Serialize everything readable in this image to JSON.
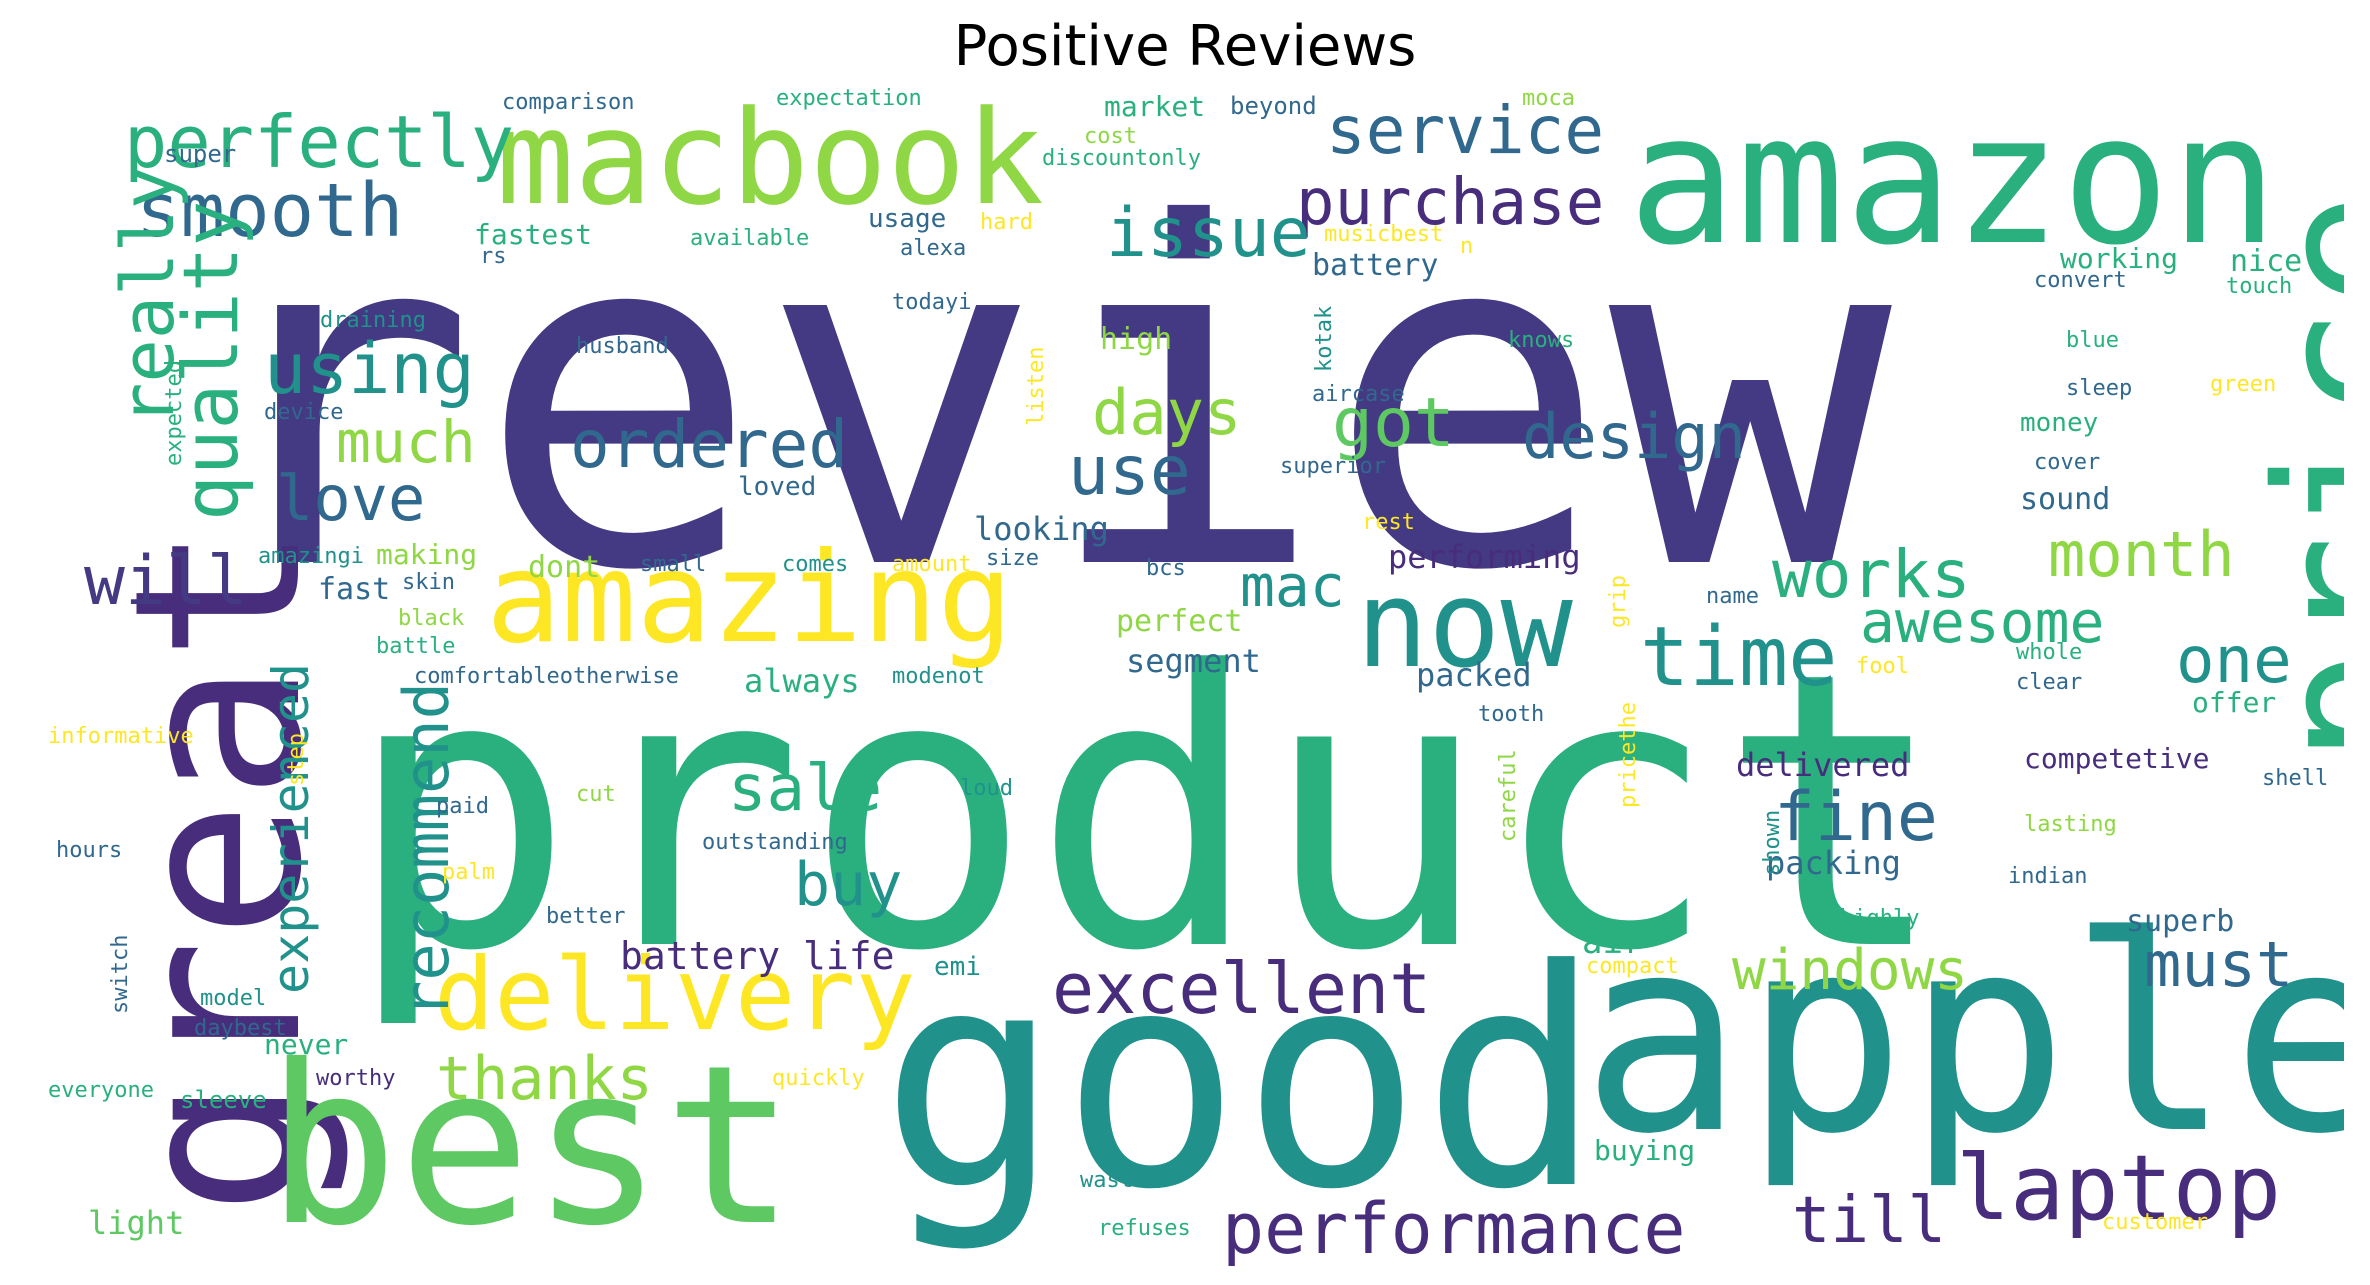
{
  "title": "Positive Reviews",
  "colors": {
    "navy": "#443983",
    "purple": "#472d7b",
    "blue": "#31688e",
    "teal": "#21918c",
    "green": "#2ab07f",
    "lime": "#5ec962",
    "ylgreen": "#8fd744",
    "yellow": "#fde725"
  },
  "words": [
    "review",
    "product",
    "good",
    "apple",
    "amazon",
    "great",
    "best",
    "price",
    "macbook",
    "amazing",
    "now",
    "delivery",
    "laptop",
    "performance",
    "excellent",
    "time",
    "perfectly",
    "service",
    "purchase",
    "issue",
    "smooth",
    "really",
    "quality",
    "using",
    "ordered",
    "days",
    "got",
    "design",
    "much",
    "use",
    "love",
    "will",
    "recommend",
    "experienced",
    "mac",
    "works",
    "month",
    "awesome",
    "one",
    "fine",
    "sale",
    "buy",
    "windows",
    "must",
    "till",
    "thanks",
    "battery life",
    "competetive",
    "delivered",
    "packing",
    "packed",
    "segment",
    "perfect",
    "always",
    "performing",
    "looking",
    "superb",
    "air",
    "offer",
    "sound",
    "money",
    "cover",
    "sleep",
    "blue",
    "convert",
    "touch",
    "working",
    "nice",
    "battery",
    "market",
    "beyond",
    "moca",
    "comparison",
    "expectation",
    "cost",
    "discountonly",
    "super",
    "fastest",
    "available",
    "usage",
    "hard",
    "alexa",
    "musicbest",
    "n",
    "rs",
    "todayi",
    "draining",
    "husband",
    "knows",
    "kotak",
    "aircase",
    "high",
    "device",
    "expected",
    "listen",
    "superior",
    "green",
    "loved",
    "rest",
    "amazingi",
    "making",
    "dont",
    "small",
    "comes",
    "amount",
    "size",
    "bcs",
    "fast",
    "skin",
    "black",
    "battle",
    "comfortableotherwise",
    "modenot",
    "name",
    "grip",
    "fool",
    "whole",
    "clear",
    "informative",
    "step",
    "tooth",
    "pricethe",
    "careful",
    "shell",
    "paid",
    "cut",
    "loud",
    "outstanding",
    "shown",
    "lasting",
    "indian",
    "hours",
    "better",
    "switch",
    "palm",
    "highly",
    "emi",
    "compact",
    "model",
    "daybest",
    "never",
    "worthy",
    "everyone",
    "sleeve",
    "quickly",
    "buying",
    "light",
    "waste",
    "refuses",
    "customer"
  ]
}
